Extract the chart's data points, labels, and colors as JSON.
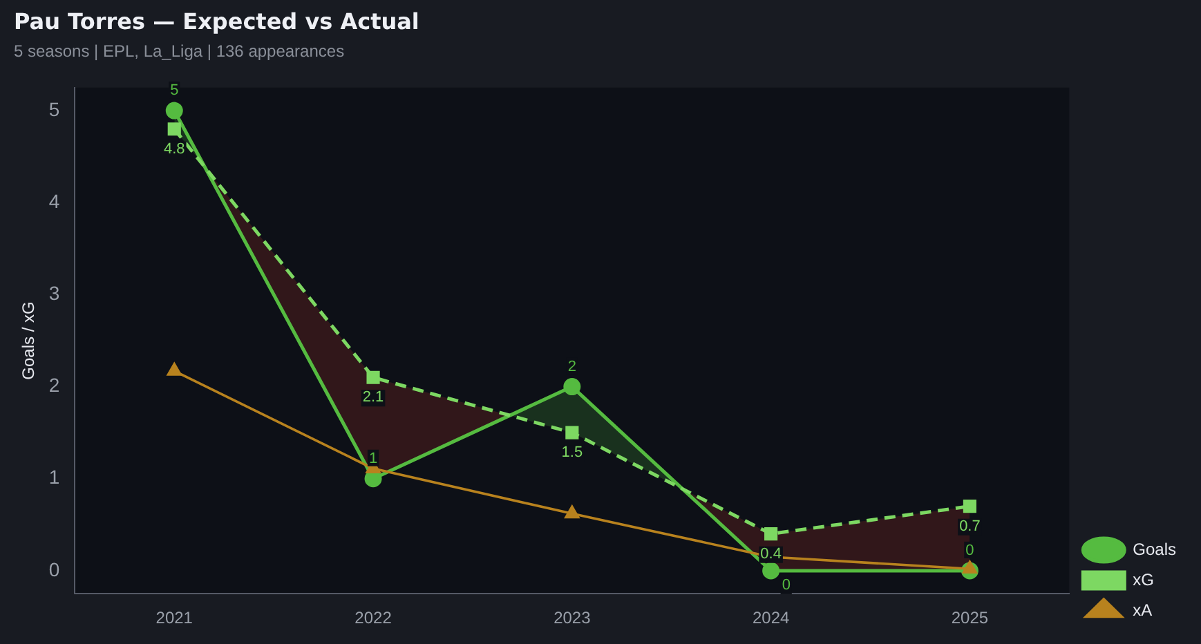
{
  "chart_data": {
    "type": "line",
    "title": "Pau Torres — Expected vs Actual",
    "subtitle": "5 seasons | EPL, La_Liga | 136 appearances",
    "ylabel": "Goals / xG",
    "categories": [
      "2021",
      "2022",
      "2023",
      "2024",
      "2025"
    ],
    "series": [
      {
        "name": "Goals",
        "color": "#55bb40",
        "marker": "circle",
        "line_style": "solid",
        "values": [
          5,
          1,
          2,
          0,
          0
        ],
        "value_labels": [
          "5",
          "1",
          "2",
          "0",
          "0"
        ]
      },
      {
        "name": "xG",
        "color": "#7dd862",
        "marker": "square",
        "line_style": "dashed",
        "values": [
          4.8,
          2.1,
          1.5,
          0.4,
          0.7
        ],
        "value_labels": [
          "4.8",
          "2.1",
          "1.5",
          "0.4",
          "0.7"
        ]
      },
      {
        "name": "xA",
        "color": "#b8821e",
        "marker": "triangle",
        "line_style": "solid",
        "values": [
          2.17,
          1.11,
          0.62,
          0.15,
          0.02
        ]
      }
    ],
    "ylim": [
      -0.25,
      5.25
    ],
    "yticks": [
      0,
      1,
      2,
      3,
      4,
      5
    ],
    "grid": false,
    "legend": "bottom right"
  }
}
